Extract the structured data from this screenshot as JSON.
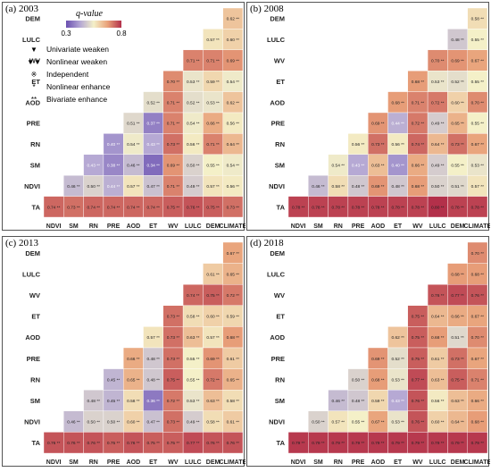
{
  "variables_rows": [
    "DEM",
    "LULC",
    "WV",
    "ET",
    "AOD",
    "PRE",
    "RN",
    "SM",
    "NDVI",
    "TA"
  ],
  "variables_cols": [
    "NDVI",
    "SM",
    "RN",
    "PRE",
    "AOD",
    "ET",
    "WV",
    "LULC",
    "DEM",
    "CLIMATE"
  ],
  "legend": {
    "title": "q-value",
    "min_label": "0.3",
    "max_label": "0.8",
    "min": 0.3,
    "max": 0.8,
    "colors": [
      "#6a4fb0",
      "#b3a6d4",
      "#f4f0c8",
      "#e9a27a",
      "#b3304a"
    ],
    "items": [
      {
        "symbol": "▼",
        "label": "Univariate weaken"
      },
      {
        "symbol": "▼▼",
        "label": "Nonlinear weaken"
      },
      {
        "symbol": "※",
        "label": "Independent"
      },
      {
        "symbol": "*",
        "label": "Nonlinear enhance"
      },
      {
        "symbol": "**",
        "label": "Bivariate enhance"
      }
    ]
  },
  "chart_data": [
    {
      "type": "heatmap",
      "title": "(a) 2003",
      "rows": {
        "DEM": {
          "CLIMATE": 0.62
        },
        "LULC": {
          "DEM": 0.57,
          "CLIMATE": 0.6
        },
        "WV": {
          "LULC": 0.71,
          "DEM": 0.71,
          "CLIMATE": 0.69
        },
        "ET": {
          "WV": 0.7,
          "LULC": 0.53,
          "DEM": 0.59,
          "CLIMATE": 0.54
        },
        "AOD": {
          "ET": 0.52,
          "WV": 0.71,
          "LULC": 0.52,
          "DEM": 0.53,
          "CLIMATE": 0.62
        },
        "PRE": {
          "AOD": 0.51,
          "ET": 0.37,
          "WV": 0.71,
          "LULC": 0.54,
          "DEM": 0.66,
          "CLIMATE": 0.56
        },
        "RN": {
          "PRE": 0.4,
          "AOD": 0.54,
          "ET": 0.43,
          "WV": 0.73,
          "LULC": 0.56,
          "DEM": 0.71,
          "CLIMATE": 0.64
        },
        "SM": {
          "RN": 0.43,
          "PRE": 0.38,
          "AOD": 0.46,
          "ET": 0.34,
          "WV": 0.69,
          "LULC": 0.5,
          "DEM": 0.55,
          "CLIMATE": 0.54
        },
        "NDVI": {
          "SM": 0.46,
          "RN": 0.5,
          "PRE": 0.44,
          "AOD": 0.57,
          "ET": 0.47,
          "WV": 0.71,
          "LULC": 0.49,
          "DEM": 0.57,
          "CLIMATE": 0.56
        },
        "TA": {
          "NDVI": 0.74,
          "SM": 0.73,
          "RN": 0.74,
          "PRE": 0.74,
          "AOD": 0.74,
          "ET": 0.74,
          "WV": 0.75,
          "LULC": 0.76,
          "DEM": 0.75,
          "CLIMATE": 0.73
        }
      }
    },
    {
      "type": "heatmap",
      "title": "(b) 2008",
      "rows": {
        "DEM": {
          "CLIMATE": 0.58
        },
        "LULC": {
          "DEM": 0.48,
          "CLIMATE": 0.55
        },
        "WV": {
          "LULC": 0.7,
          "DEM": 0.69,
          "CLIMATE": 0.67
        },
        "ET": {
          "WV": 0.68,
          "LULC": 0.53,
          "DEM": 0.52,
          "CLIMATE": 0.55
        },
        "AOD": {
          "ET": 0.68,
          "WV": 0.71,
          "LULC": 0.72,
          "DEM": 0.6,
          "CLIMATE": 0.7
        },
        "PRE": {
          "AOD": 0.69,
          "ET": 0.44,
          "WV": 0.72,
          "LULC": 0.49,
          "DEM": 0.65,
          "CLIMATE": 0.55
        },
        "RN": {
          "PRE": 0.56,
          "AOD": 0.73,
          "ET": 0.56,
          "WV": 0.74,
          "LULC": 0.64,
          "DEM": 0.73,
          "CLIMATE": 0.67
        },
        "SM": {
          "RN": 0.54,
          "PRE": 0.43,
          "AOD": 0.63,
          "ET": 0.4,
          "WV": 0.66,
          "LULC": 0.49,
          "DEM": 0.55,
          "CLIMATE": 0.53
        },
        "NDVI": {
          "SM": 0.46,
          "RN": 0.58,
          "PRE": 0.48,
          "AOD": 0.69,
          "ET": 0.48,
          "WV": 0.68,
          "LULC": 0.5,
          "DEM": 0.51,
          "CLIMATE": 0.57
        },
        "TA": {
          "NDVI": 0.78,
          "SM": 0.78,
          "RN": 0.78,
          "PRE": 0.78,
          "AOD": 0.78,
          "ET": 0.78,
          "WV": 0.78,
          "LULC": 0.8,
          "DEM": 0.78,
          "CLIMATE": 0.78
        }
      }
    },
    {
      "type": "heatmap",
      "title": "(c) 2013",
      "rows": {
        "DEM": {
          "CLIMATE": 0.67
        },
        "LULC": {
          "DEM": 0.61,
          "CLIMATE": 0.65
        },
        "WV": {
          "LULC": 0.74,
          "DEM": 0.75,
          "CLIMATE": 0.72
        },
        "ET": {
          "WV": 0.73,
          "LULC": 0.58,
          "DEM": 0.6,
          "CLIMATE": 0.59
        },
        "AOD": {
          "ET": 0.57,
          "WV": 0.73,
          "LULC": 0.63,
          "DEM": 0.57,
          "CLIMATE": 0.68
        },
        "PRE": {
          "AOD": 0.66,
          "ET": 0.48,
          "WV": 0.73,
          "LULC": 0.55,
          "DEM": 0.69,
          "CLIMATE": 0.61
        },
        "RN": {
          "PRE": 0.45,
          "AOD": 0.65,
          "ET": 0.48,
          "WV": 0.75,
          "LULC": 0.55,
          "DEM": 0.72,
          "CLIMATE": 0.65
        },
        "SM": {
          "RN": 0.48,
          "PRE": 0.45,
          "AOD": 0.58,
          "ET": 0.36,
          "WV": 0.72,
          "LULC": 0.53,
          "DEM": 0.63,
          "CLIMATE": 0.58
        },
        "NDVI": {
          "SM": 0.46,
          "RN": 0.5,
          "PRE": 0.5,
          "AOD": 0.6,
          "ET": 0.47,
          "WV": 0.73,
          "LULC": 0.49,
          "DEM": 0.58,
          "CLIMATE": 0.61
        },
        "TA": {
          "NDVI": 0.76,
          "SM": 0.76,
          "RN": 0.76,
          "PRE": 0.75,
          "AOD": 0.76,
          "ET": 0.75,
          "WV": 0.75,
          "LULC": 0.77,
          "DEM": 0.76,
          "CLIMATE": 0.76
        }
      }
    },
    {
      "type": "heatmap",
      "title": "(d) 2018",
      "rows": {
        "DEM": {
          "CLIMATE": 0.7
        },
        "LULC": {
          "DEM": 0.68,
          "CLIMATE": 0.68
        },
        "WV": {
          "LULC": 0.76,
          "DEM": 0.77,
          "CLIMATE": 0.76
        },
        "ET": {
          "WV": 0.75,
          "LULC": 0.64,
          "DEM": 0.66,
          "CLIMATE": 0.67
        },
        "AOD": {
          "ET": 0.62,
          "WV": 0.75,
          "LULC": 0.68,
          "DEM": 0.51,
          "CLIMATE": 0.7
        },
        "PRE": {
          "AOD": 0.69,
          "ET": 0.52,
          "WV": 0.75,
          "LULC": 0.61,
          "DEM": 0.73,
          "CLIMATE": 0.67
        },
        "RN": {
          "PRE": 0.5,
          "AOD": 0.68,
          "ET": 0.53,
          "WV": 0.77,
          "LULC": 0.63,
          "DEM": 0.75,
          "CLIMATE": 0.71
        },
        "SM": {
          "RN": 0.46,
          "PRE": 0.48,
          "AOD": 0.59,
          "ET": 0.43,
          "WV": 0.76,
          "LULC": 0.56,
          "DEM": 0.63,
          "CLIMATE": 0.66
        },
        "NDVI": {
          "SM": 0.5,
          "RN": 0.57,
          "PRE": 0.55,
          "AOD": 0.67,
          "ET": 0.53,
          "WV": 0.76,
          "LULC": 0.6,
          "DEM": 0.64,
          "CLIMATE": 0.68
        },
        "TA": {
          "NDVI": 0.79,
          "SM": 0.79,
          "RN": 0.79,
          "PRE": 0.79,
          "AOD": 0.79,
          "ET": 0.79,
          "WV": 0.79,
          "LULC": 0.79,
          "DEM": 0.79,
          "CLIMATE": 0.79
        }
      }
    }
  ]
}
